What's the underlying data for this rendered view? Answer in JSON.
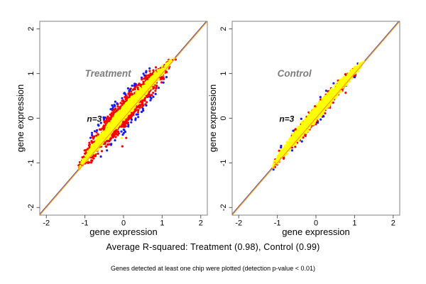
{
  "figure": {
    "caption": "Average R-squared: Treatment (0.98), Control (0.99)",
    "footnote": "Genes detected at least one chip were plotted (detection p-value < 0.01)"
  },
  "chart_data": {
    "type": "scatter",
    "description": "Two-panel replicate-concordance scatter plots of gene expression (each panel: one replicate vs another, n=3), dense point cloud along the identity line",
    "layout": {
      "rows": 1,
      "cols": 2,
      "grid": false
    },
    "axes": {
      "xlabel": "gene expression",
      "ylabel": "gene expression",
      "xticks": [
        -2,
        -1,
        0,
        1,
        2
      ],
      "yticks": [
        -2,
        -1,
        0,
        1,
        2
      ],
      "xlim": [
        -2.17,
        2.17
      ],
      "ylim": [
        -2.17,
        2.17
      ]
    },
    "identity_line": {
      "color": "#ff9a00"
    },
    "fit_line": {
      "color": "#5050c8",
      "offset": 0.025
    },
    "colors": {
      "core": "#ffff00",
      "fringe": "#fa0000",
      "outer": "#1a1aee",
      "panel_title": "#7d7d7d",
      "annotation": "#111111",
      "box": "#808080",
      "tick_text": "#000000"
    },
    "panels": [
      {
        "title": "Treatment",
        "annotation": "n=3",
        "r_squared": 0.98,
        "cloud": {
          "t_center": 0.1,
          "t_halfspan": 1.25,
          "bow": 0.08,
          "core_halfwidth": 0.13,
          "fringe_halfwidth": 0.28,
          "n_core": 1600,
          "n_fringe": 1300,
          "n_outer": 70,
          "seed": 7
        },
        "extra_points": [
          {
            "x": 0.07,
            "y": -0.44,
            "color": "#fa0000"
          },
          {
            "x": -0.05,
            "y": -0.44,
            "color": "#ffff00"
          },
          {
            "x": -0.03,
            "y": -0.63,
            "color": "#fa0000"
          }
        ]
      },
      {
        "title": "Control",
        "annotation": "n=3",
        "r_squared": 0.99,
        "cloud": {
          "t_center": 0.05,
          "t_halfspan": 1.22,
          "bow": 0.07,
          "core_halfwidth": 0.135,
          "fringe_halfwidth": 0.17,
          "n_core": 1700,
          "n_fringe": 500,
          "n_outer": 15,
          "seed": 11
        },
        "extra_points": [
          {
            "x": 0.77,
            "y": 0.57,
            "color": "#fa0000"
          },
          {
            "x": -1.1,
            "y": -1.15,
            "color": "#1a1aee"
          }
        ]
      }
    ]
  }
}
